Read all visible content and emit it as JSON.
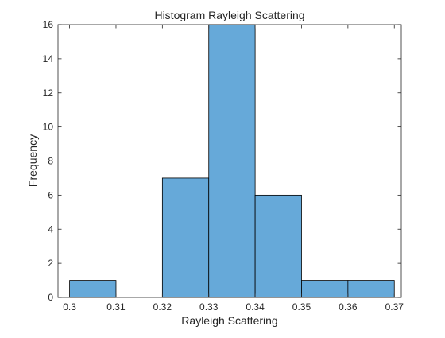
{
  "chart_data": {
    "type": "bar",
    "title": "Histogram Rayleigh Scattering",
    "xlabel": "Rayleigh Scattering",
    "ylabel": "Frequency",
    "xlim": [
      0.2975,
      0.3715
    ],
    "ylim": [
      0,
      16
    ],
    "bin_edges": [
      0.3,
      0.31,
      0.32,
      0.33,
      0.34,
      0.35,
      0.36,
      0.37
    ],
    "values": [
      1,
      0,
      7,
      16,
      6,
      1,
      1
    ],
    "x_ticks": [
      0.3,
      0.31,
      0.32,
      0.33,
      0.34,
      0.35,
      0.36,
      0.37
    ],
    "x_tick_labels": [
      "0.3",
      "0.31",
      "0.32",
      "0.33",
      "0.34",
      "0.35",
      "0.36",
      "0.37"
    ],
    "y_ticks": [
      0,
      2,
      4,
      6,
      8,
      10,
      12,
      14,
      16
    ],
    "y_tick_labels": [
      "0",
      "2",
      "4",
      "6",
      "8",
      "10",
      "12",
      "14",
      "16"
    ],
    "bar_color": "#66a9d9",
    "bar_edge_color": "#000000",
    "axis_color": "#262626",
    "grid": false,
    "box": true
  }
}
